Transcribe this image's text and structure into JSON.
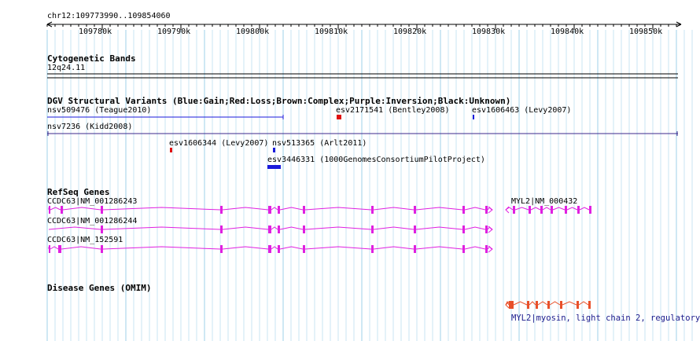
{
  "ruler": {
    "location": "chr12:109773990..109854060",
    "ticks": [
      "109780k",
      "109790k",
      "109800k",
      "109810k",
      "109820k",
      "109830k",
      "109840k",
      "109850k"
    ]
  },
  "cytobands": {
    "title": "Cytogenetic Bands",
    "band": "12q24.11"
  },
  "dgv": {
    "title": "DGV Structural Variants (Blue:Gain;Red:Loss;Brown:Complex;Purple:Inversion;Black:Unknown)",
    "variants": [
      {
        "label": "nsv509476 (Teague2010)",
        "type": "gain"
      },
      {
        "label": "esv2171541 (Bentley2008)",
        "type": "loss"
      },
      {
        "label": "esv1606463 (Levy2007)",
        "type": "gain"
      },
      {
        "label": "nsv7236 (Kidd2008)",
        "type": "inversion"
      },
      {
        "label": "esv1606344 (Levy2007)",
        "type": "loss"
      },
      {
        "label": "nsv513365 (Arlt2011)",
        "type": "gain"
      },
      {
        "label": "esv3446331 (1000GenomesConsortiumPilotProject)",
        "type": "gain"
      }
    ],
    "colors": {
      "gain": "#1a1adb",
      "loss": "#e01010",
      "inversion": "#3d2a8c"
    }
  },
  "refseq": {
    "title": "RefSeq Genes",
    "genes": [
      {
        "label": "CCDC63|NM_001286243"
      },
      {
        "label": "CCDC63|NM_001286244"
      },
      {
        "label": "CCDC63|NM_152591"
      },
      {
        "label": "MYL2|NM_000432"
      }
    ],
    "color": "#e020e0"
  },
  "omim": {
    "title": "Disease Genes (OMIM)",
    "gene_label": "MYL2|myosin, light chain 2, regulatory,",
    "color": "#e8502a"
  }
}
